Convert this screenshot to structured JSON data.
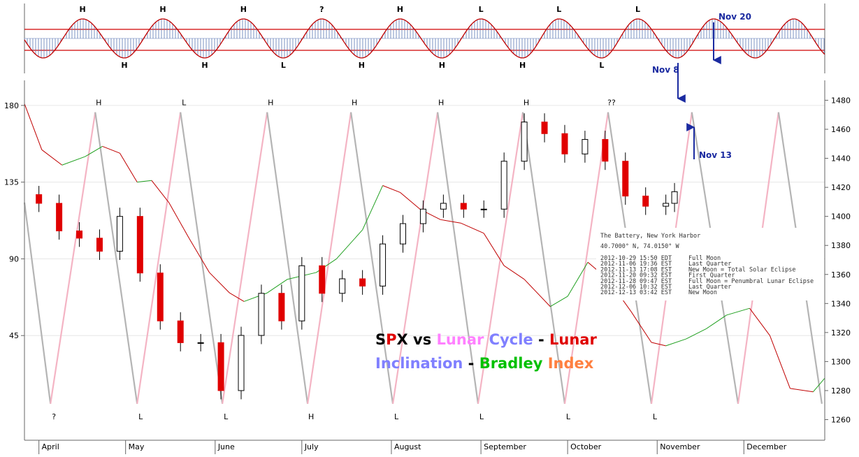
{
  "chart_data": [
    {
      "type": "wave",
      "x": [
        1.5,
        15.1,
        29.6,
        42.9,
        57.4,
        70.8,
        84.6,
        97.9,
        111.7,
        125,
        139.5,
        153,
        167.4,
        180,
        194.8,
        207.3,
        221,
        233.5,
        248,
        261.3
      ],
      "values": [
        -1,
        1,
        -1,
        1,
        -1,
        1,
        -1,
        1,
        -1,
        1,
        -1,
        1,
        -1,
        1,
        -1,
        1,
        -1,
        1,
        -1,
        1
      ],
      "labels": [
        null,
        "H",
        "H",
        "H",
        "H",
        "H",
        "L",
        "?",
        "H",
        "H",
        "H",
        "L",
        "H",
        "L",
        "L",
        "L",
        null,
        null,
        null,
        null
      ],
      "xlim": [
        -5,
        272
      ],
      "ylim": [
        -1.79,
        1.79
      ],
      "color": "#c00000",
      "hatch_color": "#5a78b4",
      "label_color": "#1818c0"
    },
    {
      "type": "combo",
      "title_lines": [
        [
          {
            "text": "S",
            "color": "#000000"
          },
          {
            "text": "P",
            "color": "#e00000"
          },
          {
            "text": "X",
            "color": "#000000"
          },
          {
            "text": " vs ",
            "color": "#000000"
          },
          {
            "text": "Lunar ",
            "color": "#ff80ff"
          },
          {
            "text": "Cycle",
            "color": "#8080ff"
          },
          {
            "text": " - ",
            "color": "#000000"
          },
          {
            "text": "Lunar",
            "color": "#e00000"
          }
        ],
        [
          {
            "text": "Inclination",
            "color": "#8080ff"
          },
          {
            "text": " - ",
            "color": "#000000"
          },
          {
            "text": "Bradley ",
            "color": "#00c000"
          },
          {
            "text": "Index",
            "color": "#ff8040"
          }
        ]
      ],
      "xlim": [
        -5,
        272
      ],
      "xticks": [
        {
          "value": 0,
          "label": "April"
        },
        {
          "value": 30,
          "label": "May"
        },
        {
          "value": 61,
          "label": "June"
        },
        {
          "value": 91,
          "label": "July"
        },
        {
          "value": 122,
          "label": "August"
        },
        {
          "value": 153,
          "label": "September"
        },
        {
          "value": 183,
          "label": "October"
        },
        {
          "value": 214,
          "label": "November"
        },
        {
          "value": 244,
          "label": "December"
        }
      ],
      "ylim": [
        -16.4,
        194.7
      ],
      "yticks": [
        45,
        90,
        135,
        180
      ],
      "y2lim": [
        1245.8,
        1493.7
      ],
      "y2ticks": [
        1260,
        1280,
        1300,
        1320,
        1340,
        1360,
        1380,
        1400,
        1420,
        1440,
        1460,
        1480
      ],
      "grid": true,
      "series": [
        {
          "type": "sawtooth",
          "rising_color": "#f4b4c4",
          "falling_color": "#b4b4b4",
          "label_color": "#1818c0",
          "x": [
            -5,
            4,
            19.5,
            34,
            49,
            63.5,
            79,
            93,
            108,
            122.5,
            138,
            152,
            167.5,
            182,
            197,
            212,
            226,
            242,
            256,
            271
          ],
          "values": [
            123,
            5,
            176,
            5,
            176,
            5,
            176,
            5,
            176,
            5,
            176,
            5,
            176,
            5,
            176,
            5,
            176,
            5,
            176,
            5
          ],
          "labels": [
            null,
            "?",
            "H",
            "L",
            "L",
            "L",
            "H",
            "H",
            "H",
            "L",
            "H",
            "L",
            "H",
            "L",
            "??",
            "L",
            null,
            null,
            null,
            null
          ]
        },
        {
          "type": "line",
          "rising_color": "#20a020",
          "falling_color": "#c00000",
          "x": [
            -5,
            1,
            8,
            16,
            22,
            28,
            34,
            39,
            45,
            52,
            59,
            66,
            71,
            79,
            86,
            96,
            103,
            112,
            119,
            125,
            132,
            139,
            146,
            154,
            161,
            168,
            177,
            183,
            190,
            197,
            205,
            212,
            217,
            224,
            231,
            238,
            246,
            253,
            260,
            268,
            272
          ],
          "values": [
            181,
            154,
            145,
            150,
            156,
            152,
            135,
            136,
            123,
            102,
            82,
            70,
            65,
            70,
            78,
            82,
            90,
            107,
            133,
            129,
            119,
            113,
            111,
            105,
            86,
            78,
            62,
            68,
            88,
            78,
            59,
            41,
            39,
            43,
            49,
            57,
            61,
            45,
            14,
            12,
            20
          ]
        },
        {
          "type": "candlestick",
          "axis": "y2",
          "up_color": "#ffffff",
          "down_color": "#e00000",
          "x": [
            0,
            7,
            14,
            21,
            28,
            35,
            42,
            49,
            56,
            63,
            70,
            77,
            84,
            91,
            98,
            105,
            112,
            119,
            126,
            133,
            140,
            147,
            154,
            161,
            168,
            175,
            182,
            189,
            196,
            203,
            210,
            217,
            220
          ],
          "open": [
            1415,
            1409,
            1390,
            1385,
            1376,
            1400,
            1361,
            1328,
            1313,
            1313,
            1280,
            1318,
            1347,
            1328,
            1366,
            1347,
            1357,
            1352,
            1381,
            1395,
            1405,
            1409,
            1405,
            1405,
            1438,
            1465,
            1457,
            1443,
            1453,
            1438,
            1414,
            1407,
            1409
          ],
          "high": [
            1421,
            1415,
            1396,
            1391,
            1406,
            1406,
            1367,
            1334,
            1319,
            1319,
            1324,
            1353,
            1353,
            1372,
            1372,
            1363,
            1363,
            1387,
            1401,
            1411,
            1415,
            1415,
            1411,
            1444,
            1471,
            1471,
            1463,
            1459,
            1459,
            1444,
            1420,
            1415,
            1423
          ],
          "low": [
            1403,
            1384,
            1379,
            1370,
            1370,
            1355,
            1322,
            1307,
            1307,
            1274,
            1274,
            1312,
            1322,
            1322,
            1341,
            1341,
            1346,
            1346,
            1375,
            1389,
            1399,
            1399,
            1399,
            1399,
            1432,
            1451,
            1437,
            1437,
            1432,
            1408,
            1401,
            1401,
            1403
          ],
          "close": [
            1409,
            1390,
            1385,
            1376,
            1400,
            1361,
            1328,
            1313,
            1313,
            1280,
            1318,
            1347,
            1328,
            1366,
            1347,
            1357,
            1352,
            1381,
            1395,
            1405,
            1409,
            1405,
            1405,
            1438,
            1465,
            1457,
            1443,
            1453,
            1438,
            1414,
            1407,
            1409,
            1417
          ]
        }
      ],
      "annotations": [
        "Nov 20",
        "Nov 8",
        "Nov 13"
      ],
      "info_box": {
        "title": "The Battery, New York Harbor",
        "coords": "40.7000° N, 74.0150° W",
        "rows": [
          [
            "2012-10-29",
            "15:50 EDT",
            "Full Moon"
          ],
          [
            "2012-11-06",
            "19:36 EST",
            "Last Quarter"
          ],
          [
            "2012-11-13",
            "17:08 EST",
            "New Moon = Total Solar Eclipse"
          ],
          [
            "2012-11-20",
            "09:32 EST",
            "First Quarter"
          ],
          [
            "2012-11-28",
            "09:47 EST",
            "Full Moon = Penumbral Lunar Eclipse"
          ],
          [
            "2012-12-06",
            "10:32 EST",
            "Last Quarter"
          ],
          [
            "2012-12-13",
            "03:42 EST",
            "New Moon"
          ]
        ]
      }
    }
  ]
}
